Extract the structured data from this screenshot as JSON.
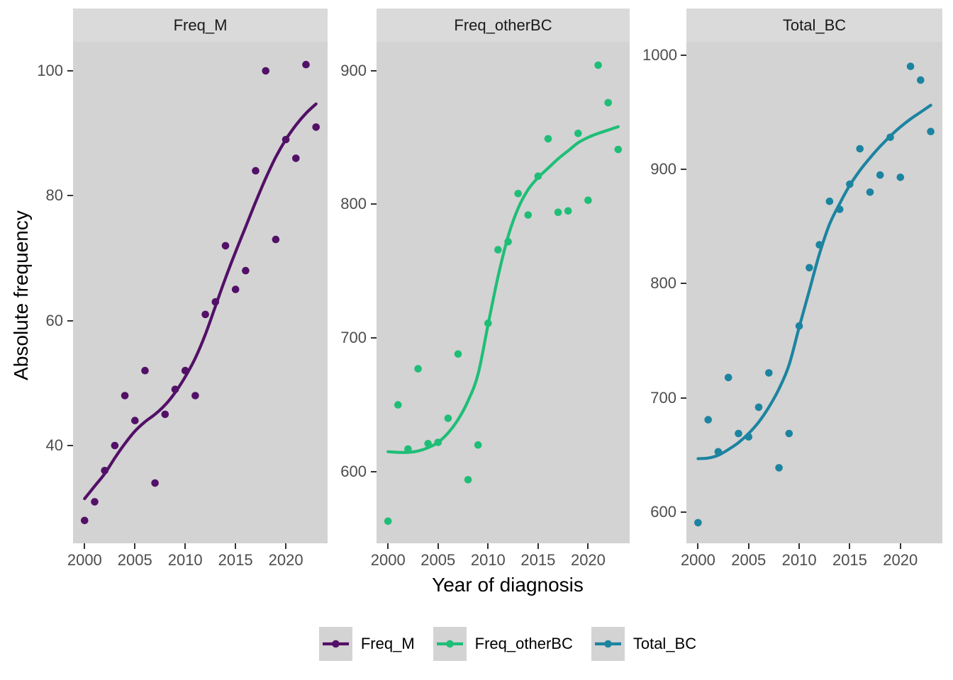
{
  "figure": {
    "ylabel": "Absolute frequency",
    "xlabel": "Year of diagnosis"
  },
  "palette": {
    "page_bg": "#FFFFFF",
    "panel_bg": "#D3D3D3",
    "strip_bg": "#DADADA",
    "strip_text": "#1A1A1A",
    "tick_text": "#4D4D4D",
    "tick_mark": "#333333",
    "axis_title_text": "#000000",
    "legend_key_bg": "#D3D3D3"
  },
  "legend": {
    "items": [
      {
        "label": "Freq_M",
        "color": "#531067"
      },
      {
        "label": "Freq_otherBC",
        "color": "#1FBE77"
      },
      {
        "label": "Total_BC",
        "color": "#1C84A0"
      }
    ]
  },
  "chart_data": {
    "type": "scatter",
    "title": "",
    "xlabel": "Year of diagnosis",
    "ylabel": "Absolute frequency",
    "grid": false,
    "legend_position": "bottom",
    "x": [
      2000,
      2001,
      2002,
      2003,
      2004,
      2005,
      2006,
      2007,
      2008,
      2009,
      2010,
      2011,
      2012,
      2013,
      2014,
      2015,
      2016,
      2017,
      2018,
      2019,
      2020,
      2021,
      2022,
      2023
    ],
    "x_ticks": [
      2000,
      2005,
      2010,
      2015,
      2020
    ],
    "xlim": [
      1998.85,
      2024.15
    ],
    "facets": [
      {
        "title": "Freq_M",
        "color": "#531067",
        "y_ticks": [
          40,
          60,
          80,
          100
        ],
        "ylim": [
          24.35,
          104.65
        ],
        "values": [
          28,
          31,
          36,
          40,
          48,
          44,
          52,
          34,
          45,
          49,
          52,
          48,
          61,
          63,
          72,
          65,
          68,
          84,
          100,
          73,
          89,
          86,
          101,
          91
        ],
        "trend": [
          31.5,
          33.5,
          35.5,
          38,
          40.3,
          42.3,
          43.8,
          45,
          46.5,
          48.5,
          51,
          54,
          57.8,
          62.3,
          66.8,
          71,
          75,
          79,
          82.8,
          86.2,
          89,
          91.3,
          93.2,
          94.7
        ]
      },
      {
        "title": "Freq_otherBC",
        "color": "#1FBE77",
        "y_ticks": [
          600,
          700,
          800,
          900
        ],
        "ylim": [
          546.5,
          921.5
        ],
        "values": [
          563,
          650,
          617,
          677,
          621,
          622,
          640,
          688,
          594,
          620,
          711,
          766,
          772,
          808,
          792,
          821,
          849,
          794,
          795,
          853,
          803,
          904,
          876,
          841
        ],
        "trend": [
          615,
          614.5,
          614.5,
          615.5,
          618,
          622,
          629,
          639,
          653,
          673,
          710,
          746,
          776,
          797,
          811,
          820,
          827,
          834,
          840,
          846,
          850,
          853,
          855.5,
          858
        ]
      },
      {
        "title": "Total_BC",
        "color": "#1C84A0",
        "y_ticks": [
          600,
          700,
          800,
          900,
          1000
        ],
        "ylim": [
          573,
          1011.5
        ],
        "values": [
          591,
          681,
          653,
          718,
          669,
          666,
          692,
          722,
          639,
          669,
          763,
          814,
          834,
          872,
          865,
          887,
          918,
          880,
          895,
          928,
          893,
          990,
          978,
          933
        ],
        "trend": [
          647,
          647.5,
          650,
          655,
          661,
          669,
          679,
          692,
          708,
          729,
          762,
          794,
          826,
          852,
          870,
          886,
          899,
          910,
          920,
          929,
          937,
          944,
          950,
          956
        ]
      }
    ]
  }
}
